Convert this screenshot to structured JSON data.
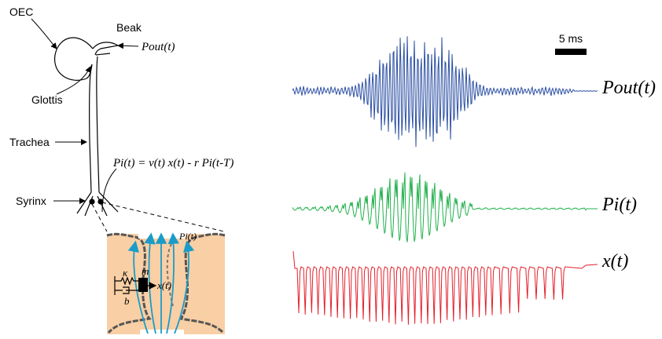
{
  "labels": {
    "oec": "OEC",
    "beak": "Beak",
    "p_out": "Pout(t)",
    "glottis": "Glottis",
    "trachea": "Trachea",
    "syrinx": "Syrinx",
    "equation": "Pi(t) = ν(t) x(t) - r Pi(t-T)"
  },
  "scale_bar": "5 ms",
  "traces": [
    {
      "label": "Pout(t)",
      "color": "#2b4fa3"
    },
    {
      "label": "Pi(t)",
      "color": "#22b14c"
    },
    {
      "label": "x(t)",
      "color": "#e3202b"
    }
  ],
  "inset": {
    "flow": "Pi(t)",
    "kappa": "κ",
    "mass": "m",
    "damping": "b",
    "displacement": "x(t)"
  }
}
